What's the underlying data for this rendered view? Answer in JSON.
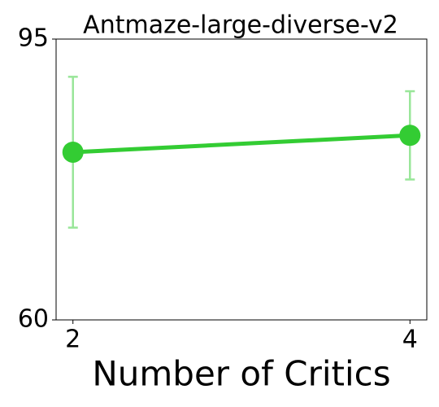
{
  "chart_data": {
    "type": "line",
    "title": "Antmaze-large-diverse-v2",
    "x_label": "Number of Critics",
    "x": [
      2,
      4
    ],
    "series": [
      {
        "color": "#33cc33",
        "error_color": "#99e699",
        "values": [
          80.9,
          83.0
        ],
        "errors": [
          9.4,
          5.5
        ]
      }
    ],
    "xlim": [
      1.9,
      4.1
    ],
    "xticks": [
      2,
      4
    ],
    "ylim": [
      60,
      95
    ],
    "yticks": [
      60,
      95
    ],
    "grid": false
  }
}
